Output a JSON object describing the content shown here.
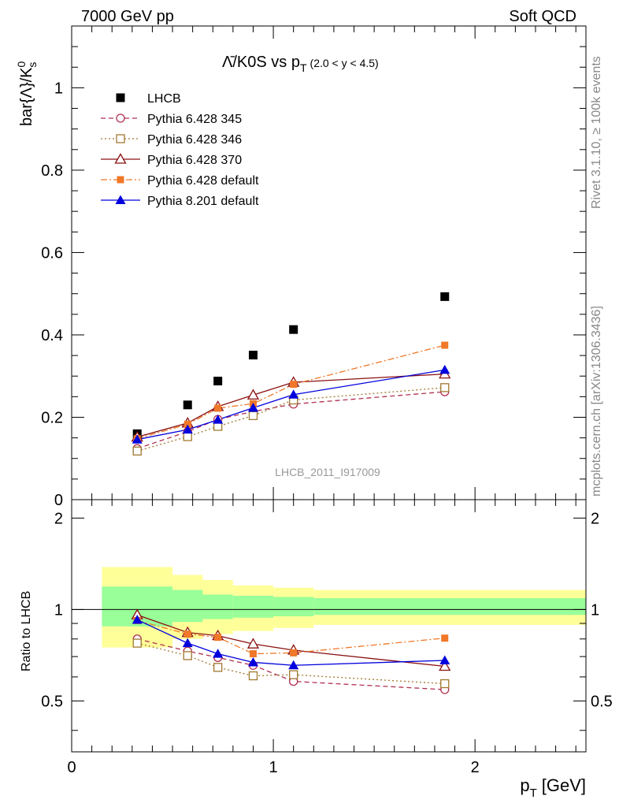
{
  "header": {
    "left": "7000 GeV pp",
    "right": "Soft QCD"
  },
  "side": {
    "rivet": "Rivet 3.1.10, ≥ 100k events",
    "mcplots": "mcplots.cern.ch [arXiv:1306.3436]"
  },
  "chart_data": {
    "type": "scatter",
    "title_main": "Λ̄/K0S vs p",
    "title_sub": "T",
    "title_range": "(2.0 < y < 4.5)",
    "watermark": "LHCB_2011_I917009",
    "xlabel_main": "p",
    "xlabel_sub": "T",
    "xlabel_unit": "[GeV]",
    "ylabel_main": "bar{Λ}/K",
    "ylabel_sup": "0",
    "ylabel_sub": "s",
    "ratio_ylabel": "Ratio to LHCB",
    "xlim": [
      0,
      2.55
    ],
    "ylim": [
      0,
      1.15
    ],
    "ratio_ylim": [
      0.34,
      2.3
    ],
    "x_ticks": [
      0,
      1,
      2
    ],
    "x_tick_labels": [
      "0",
      "1",
      "2"
    ],
    "y_ticks": [
      0,
      0.2,
      0.4,
      0.6,
      0.8,
      1
    ],
    "y_tick_labels": [
      "0",
      "0.2",
      "0.4",
      "0.6",
      "0.8",
      "1"
    ],
    "ratio_y_ticks": [
      0.5,
      1,
      2
    ],
    "ratio_y_tick_labels": [
      "0.5",
      "1",
      "2"
    ],
    "band_edges": [
      0.15,
      0.5,
      0.65,
      0.8,
      1.0,
      1.2,
      2.55
    ],
    "band_inner": [
      [
        0.88,
        1.19
      ],
      [
        0.91,
        1.16
      ],
      [
        0.93,
        1.12
      ],
      [
        0.94,
        1.11
      ],
      [
        0.95,
        1.1
      ],
      [
        0.96,
        1.09
      ]
    ],
    "band_outer": [
      [
        0.75,
        1.38
      ],
      [
        0.8,
        1.3
      ],
      [
        0.83,
        1.25
      ],
      [
        0.85,
        1.2
      ],
      [
        0.87,
        1.18
      ],
      [
        0.89,
        1.16
      ]
    ],
    "x": [
      0.325,
      0.575,
      0.725,
      0.9,
      1.1,
      1.85
    ],
    "series": [
      {
        "name": "LHCB",
        "values": [
          0.16,
          0.23,
          0.288,
          0.351,
          0.413,
          0.493
        ],
        "ratio": [
          1,
          1,
          1,
          1,
          1,
          1
        ],
        "color": "#000000",
        "marker": "square-filled",
        "line": "none"
      },
      {
        "name": "Pythia 6.428 345",
        "values": [
          0.124,
          0.165,
          0.195,
          0.214,
          0.232,
          0.262
        ],
        "ratio": [
          0.8,
          0.73,
          0.695,
          0.655,
          0.58,
          0.545
        ],
        "color": "#b03050",
        "marker": "circle-open",
        "line": "dashed"
      },
      {
        "name": "Pythia 6.428 346",
        "values": [
          0.118,
          0.153,
          0.178,
          0.204,
          0.242,
          0.272
        ],
        "ratio": [
          0.775,
          0.705,
          0.645,
          0.605,
          0.61,
          0.57
        ],
        "color": "#a07830",
        "marker": "square-open",
        "line": "dotted"
      },
      {
        "name": "Pythia 6.428 370",
        "values": [
          0.152,
          0.186,
          0.226,
          0.254,
          0.285,
          0.305
        ],
        "ratio": [
          0.96,
          0.84,
          0.82,
          0.77,
          0.735,
          0.65
        ],
        "color": "#8b1010",
        "marker": "triangle-open",
        "line": "solid"
      },
      {
        "name": "Pythia 6.428 default",
        "values": [
          0.148,
          0.183,
          0.222,
          0.233,
          0.28,
          0.375
        ],
        "ratio": [
          0.92,
          0.83,
          0.81,
          0.715,
          0.72,
          0.805
        ],
        "color": "#f07828",
        "marker": "square-filled-small",
        "line": "dashdot"
      },
      {
        "name": "Pythia 8.201 default",
        "values": [
          0.146,
          0.17,
          0.194,
          0.223,
          0.255,
          0.315
        ],
        "ratio": [
          0.925,
          0.775,
          0.715,
          0.67,
          0.655,
          0.68
        ],
        "color": "#0000dd",
        "marker": "triangle-filled",
        "line": "solid"
      }
    ]
  }
}
